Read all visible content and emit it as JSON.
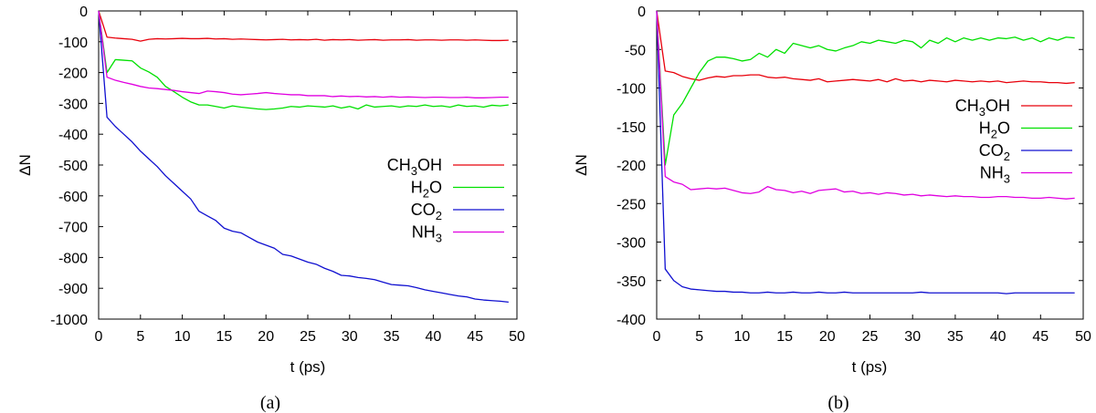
{
  "chart_data": [
    {
      "type": "line",
      "panel_label": "(a)",
      "xlabel": "t (ps)",
      "ylabel": "ΔN",
      "xlim": [
        0,
        50
      ],
      "ylim": [
        -1000,
        0
      ],
      "xticks": [
        0,
        5,
        10,
        15,
        20,
        25,
        30,
        35,
        40,
        45,
        50
      ],
      "yticks": [
        0,
        -100,
        -200,
        -300,
        -400,
        -500,
        -600,
        -700,
        -800,
        -900,
        -1000
      ],
      "legend_position": "center-right",
      "series": [
        {
          "name": "CH3OH",
          "label_main": "CH",
          "label_sub": "3",
          "label_tail": "OH",
          "color": "#e8000b",
          "x": [
            0,
            1,
            2,
            3,
            4,
            5,
            6,
            7,
            8,
            9,
            10,
            11,
            12,
            13,
            14,
            15,
            16,
            17,
            18,
            19,
            20,
            21,
            22,
            23,
            24,
            25,
            26,
            27,
            28,
            29,
            30,
            31,
            32,
            33,
            34,
            35,
            36,
            37,
            38,
            39,
            40,
            41,
            42,
            43,
            44,
            45,
            46,
            47,
            48,
            49
          ],
          "y": [
            0,
            -85,
            -88,
            -90,
            -92,
            -98,
            -92,
            -90,
            -91,
            -90,
            -89,
            -90,
            -90,
            -89,
            -91,
            -90,
            -92,
            -91,
            -92,
            -93,
            -94,
            -93,
            -92,
            -94,
            -93,
            -94,
            -92,
            -95,
            -93,
            -94,
            -93,
            -95,
            -94,
            -93,
            -95,
            -94,
            -94,
            -93,
            -95,
            -94,
            -94,
            -95,
            -94,
            -94,
            -95,
            -94,
            -95,
            -96,
            -96,
            -95
          ]
        },
        {
          "name": "H2O",
          "label_main": "H",
          "label_sub": "2",
          "label_tail": "O",
          "color": "#00e000",
          "x": [
            0,
            1,
            2,
            3,
            4,
            5,
            6,
            7,
            8,
            9,
            10,
            11,
            12,
            13,
            14,
            15,
            16,
            17,
            18,
            19,
            20,
            21,
            22,
            23,
            24,
            25,
            26,
            27,
            28,
            29,
            30,
            31,
            32,
            33,
            34,
            35,
            36,
            37,
            38,
            39,
            40,
            41,
            42,
            43,
            44,
            45,
            46,
            47,
            48,
            49
          ],
          "y": [
            0,
            -200,
            -158,
            -160,
            -162,
            -185,
            -198,
            -215,
            -245,
            -262,
            -280,
            -295,
            -305,
            -305,
            -310,
            -315,
            -308,
            -312,
            -315,
            -318,
            -320,
            -318,
            -315,
            -310,
            -312,
            -308,
            -310,
            -312,
            -308,
            -315,
            -310,
            -318,
            -305,
            -312,
            -310,
            -308,
            -312,
            -308,
            -310,
            -305,
            -310,
            -308,
            -312,
            -305,
            -310,
            -308,
            -312,
            -306,
            -308,
            -305
          ]
        },
        {
          "name": "CO2",
          "label_main": "CO",
          "label_sub": "2",
          "label_tail": "",
          "color": "#1010d0",
          "x": [
            0,
            1,
            2,
            3,
            4,
            5,
            6,
            7,
            8,
            9,
            10,
            11,
            12,
            13,
            14,
            15,
            16,
            17,
            18,
            19,
            20,
            21,
            22,
            23,
            24,
            25,
            26,
            27,
            28,
            29,
            30,
            31,
            32,
            33,
            34,
            35,
            36,
            37,
            38,
            39,
            40,
            41,
            42,
            43,
            44,
            45,
            46,
            47,
            48,
            49
          ],
          "y": [
            0,
            -345,
            -375,
            -400,
            -425,
            -455,
            -480,
            -505,
            -535,
            -560,
            -585,
            -610,
            -650,
            -665,
            -680,
            -705,
            -715,
            -720,
            -735,
            -750,
            -760,
            -770,
            -790,
            -795,
            -805,
            -815,
            -822,
            -835,
            -845,
            -858,
            -860,
            -865,
            -868,
            -872,
            -880,
            -888,
            -890,
            -892,
            -898,
            -905,
            -910,
            -915,
            -920,
            -925,
            -928,
            -935,
            -938,
            -940,
            -942,
            -945
          ]
        },
        {
          "name": "NH3",
          "label_main": "NH",
          "label_sub": "3",
          "label_tail": "",
          "color": "#e000e0",
          "x": [
            0,
            1,
            2,
            3,
            4,
            5,
            6,
            7,
            8,
            9,
            10,
            11,
            12,
            13,
            14,
            15,
            16,
            17,
            18,
            19,
            20,
            21,
            22,
            23,
            24,
            25,
            26,
            27,
            28,
            29,
            30,
            31,
            32,
            33,
            34,
            35,
            36,
            37,
            38,
            39,
            40,
            41,
            42,
            43,
            44,
            45,
            46,
            47,
            48,
            49
          ],
          "y": [
            0,
            -215,
            -225,
            -232,
            -238,
            -245,
            -250,
            -252,
            -255,
            -258,
            -262,
            -265,
            -268,
            -260,
            -262,
            -265,
            -270,
            -272,
            -270,
            -268,
            -265,
            -268,
            -270,
            -272,
            -272,
            -275,
            -275,
            -275,
            -278,
            -276,
            -278,
            -277,
            -279,
            -278,
            -280,
            -278,
            -280,
            -279,
            -280,
            -281,
            -280,
            -280,
            -281,
            -281,
            -280,
            -282,
            -282,
            -281,
            -280,
            -280
          ]
        }
      ]
    },
    {
      "type": "line",
      "panel_label": "(b)",
      "xlabel": "t (ps)",
      "ylabel": "ΔN",
      "xlim": [
        0,
        50
      ],
      "ylim": [
        -400,
        0
      ],
      "xticks": [
        0,
        5,
        10,
        15,
        20,
        25,
        30,
        35,
        40,
        45,
        50
      ],
      "yticks": [
        0,
        -50,
        -100,
        -150,
        -200,
        -250,
        -300,
        -350,
        -400
      ],
      "legend_position": "top-right",
      "series": [
        {
          "name": "CH3OH",
          "label_main": "CH",
          "label_sub": "3",
          "label_tail": "OH",
          "color": "#e8000b",
          "x": [
            0,
            1,
            2,
            3,
            4,
            5,
            6,
            7,
            8,
            9,
            10,
            11,
            12,
            13,
            14,
            15,
            16,
            17,
            18,
            19,
            20,
            21,
            22,
            23,
            24,
            25,
            26,
            27,
            28,
            29,
            30,
            31,
            32,
            33,
            34,
            35,
            36,
            37,
            38,
            39,
            40,
            41,
            42,
            43,
            44,
            45,
            46,
            47,
            48,
            49
          ],
          "y": [
            0,
            -78,
            -80,
            -85,
            -88,
            -90,
            -87,
            -85,
            -86,
            -84,
            -84,
            -83,
            -83,
            -86,
            -87,
            -86,
            -88,
            -89,
            -90,
            -88,
            -92,
            -91,
            -90,
            -89,
            -90,
            -91,
            -89,
            -92,
            -88,
            -91,
            -90,
            -92,
            -90,
            -91,
            -92,
            -90,
            -91,
            -92,
            -91,
            -92,
            -91,
            -93,
            -92,
            -91,
            -92,
            -92,
            -93,
            -93,
            -94,
            -93
          ]
        },
        {
          "name": "H2O",
          "label_main": "H",
          "label_sub": "2",
          "label_tail": "O",
          "color": "#00e000",
          "x": [
            0,
            1,
            2,
            3,
            4,
            5,
            6,
            7,
            8,
            9,
            10,
            11,
            12,
            13,
            14,
            15,
            16,
            17,
            18,
            19,
            20,
            21,
            22,
            23,
            24,
            25,
            26,
            27,
            28,
            29,
            30,
            31,
            32,
            33,
            34,
            35,
            36,
            37,
            38,
            39,
            40,
            41,
            42,
            43,
            44,
            45,
            46,
            47,
            48,
            49
          ],
          "y": [
            0,
            -200,
            -135,
            -120,
            -100,
            -80,
            -65,
            -60,
            -60,
            -62,
            -65,
            -63,
            -55,
            -60,
            -50,
            -55,
            -42,
            -45,
            -48,
            -45,
            -50,
            -52,
            -48,
            -45,
            -40,
            -42,
            -38,
            -40,
            -42,
            -38,
            -40,
            -48,
            -38,
            -42,
            -35,
            -40,
            -35,
            -38,
            -35,
            -38,
            -35,
            -36,
            -34,
            -38,
            -35,
            -40,
            -35,
            -38,
            -34,
            -35
          ]
        },
        {
          "name": "CO2",
          "label_main": "CO",
          "label_sub": "2",
          "label_tail": "",
          "color": "#1010d0",
          "x": [
            0,
            1,
            2,
            3,
            4,
            5,
            6,
            7,
            8,
            9,
            10,
            11,
            12,
            13,
            14,
            15,
            16,
            17,
            18,
            19,
            20,
            21,
            22,
            23,
            24,
            25,
            26,
            27,
            28,
            29,
            30,
            31,
            32,
            33,
            34,
            35,
            36,
            37,
            38,
            39,
            40,
            41,
            42,
            43,
            44,
            45,
            46,
            47,
            48,
            49
          ],
          "y": [
            0,
            -335,
            -350,
            -358,
            -361,
            -362,
            -363,
            -364,
            -364,
            -365,
            -365,
            -366,
            -366,
            -365,
            -366,
            -366,
            -365,
            -366,
            -366,
            -365,
            -366,
            -366,
            -365,
            -366,
            -366,
            -366,
            -366,
            -366,
            -366,
            -366,
            -366,
            -365,
            -366,
            -366,
            -366,
            -366,
            -366,
            -366,
            -366,
            -366,
            -366,
            -367,
            -366,
            -366,
            -366,
            -366,
            -366,
            -366,
            -366,
            -366
          ]
        },
        {
          "name": "NH3",
          "label_main": "NH",
          "label_sub": "3",
          "label_tail": "",
          "color": "#e000e0",
          "x": [
            0,
            1,
            2,
            3,
            4,
            5,
            6,
            7,
            8,
            9,
            10,
            11,
            12,
            13,
            14,
            15,
            16,
            17,
            18,
            19,
            20,
            21,
            22,
            23,
            24,
            25,
            26,
            27,
            28,
            29,
            30,
            31,
            32,
            33,
            34,
            35,
            36,
            37,
            38,
            39,
            40,
            41,
            42,
            43,
            44,
            45,
            46,
            47,
            48,
            49
          ],
          "y": [
            0,
            -215,
            -222,
            -225,
            -232,
            -231,
            -230,
            -231,
            -230,
            -233,
            -236,
            -237,
            -235,
            -228,
            -232,
            -233,
            -236,
            -234,
            -237,
            -233,
            -232,
            -231,
            -235,
            -234,
            -237,
            -236,
            -238,
            -236,
            -237,
            -239,
            -238,
            -240,
            -239,
            -240,
            -241,
            -240,
            -241,
            -241,
            -242,
            -242,
            -241,
            -241,
            -242,
            -242,
            -243,
            -243,
            -242,
            -243,
            -244,
            -243
          ]
        }
      ]
    }
  ]
}
